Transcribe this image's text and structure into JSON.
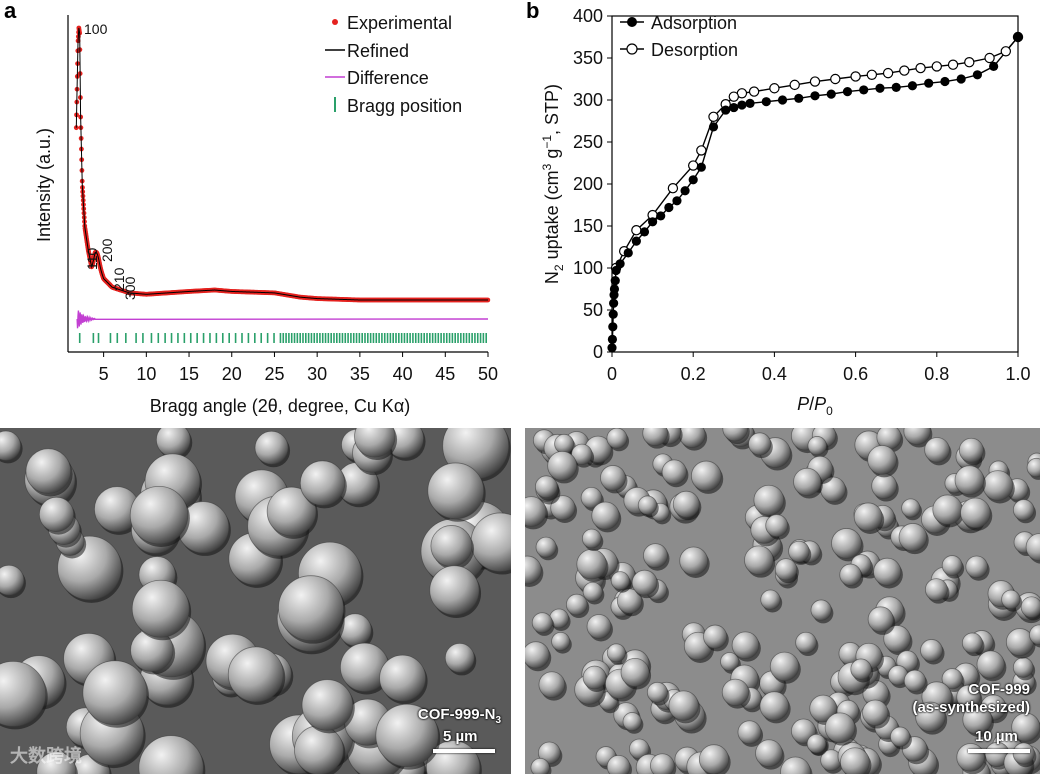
{
  "panel_a": {
    "letter": "a",
    "chart_data": {
      "type": "line",
      "xlabel": "Bragg angle (2θ, degree, Cu Kα)",
      "ylabel": "Intensity (a.u.)",
      "xlim": [
        1,
        50
      ],
      "xticks": [
        5,
        10,
        15,
        20,
        25,
        30,
        35,
        40,
        45,
        50
      ],
      "legend_position": "top-right",
      "legend": [
        "Experimental",
        "Refined",
        "Difference",
        "Bragg position"
      ],
      "peak_labels": [
        "100",
        "110",
        "200",
        "210",
        "300"
      ],
      "peak_positions": [
        2.2,
        3.8,
        4.4,
        5.8,
        6.6
      ],
      "series": [
        {
          "name": "Experimental",
          "x": [
            1.8,
            2.0,
            2.1,
            2.2,
            2.3,
            2.5,
            2.8,
            3.2,
            3.6,
            4.0,
            4.4,
            5.0,
            6.0,
            8.0,
            10,
            15,
            18,
            20,
            25,
            28,
            30,
            35,
            40,
            45,
            50
          ],
          "y": [
            0.65,
            0.95,
            1.0,
            0.98,
            0.7,
            0.45,
            0.3,
            0.22,
            0.16,
            0.19,
            0.17,
            0.12,
            0.09,
            0.07,
            0.065,
            0.075,
            0.08,
            0.075,
            0.07,
            0.055,
            0.05,
            0.045,
            0.045,
            0.045,
            0.045
          ]
        },
        {
          "name": "Difference",
          "value": -0.03
        }
      ]
    },
    "colors": {
      "experimental": "#e5221f",
      "refined": "#000000",
      "difference": "#c23fd2",
      "bragg": "#2aa06a"
    }
  },
  "panel_b": {
    "letter": "b",
    "chart_data": {
      "type": "line",
      "xlabel": "P/P0",
      "ylabel": "N2 uptake (cm3 g−1, STP)",
      "xlim": [
        0,
        1.0
      ],
      "ylim": [
        0,
        400
      ],
      "xticks": [
        "0",
        "0.2",
        "0.4",
        "0.6",
        "0.8",
        "1.0"
      ],
      "yticks": [
        "0",
        "50",
        "100",
        "150",
        "200",
        "250",
        "300",
        "350",
        "400"
      ],
      "legend_position": "top-left",
      "series": [
        {
          "name": "Adsorption",
          "x": [
            0.0,
            0.001,
            0.002,
            0.003,
            0.004,
            0.005,
            0.006,
            0.008,
            0.01,
            0.02,
            0.04,
            0.06,
            0.08,
            0.1,
            0.12,
            0.14,
            0.16,
            0.18,
            0.2,
            0.22,
            0.25,
            0.28,
            0.3,
            0.32,
            0.34,
            0.38,
            0.42,
            0.46,
            0.5,
            0.54,
            0.58,
            0.62,
            0.66,
            0.7,
            0.74,
            0.78,
            0.82,
            0.86,
            0.9,
            0.94,
            1.0
          ],
          "y": [
            5,
            15,
            30,
            45,
            58,
            68,
            75,
            85,
            97,
            105,
            118,
            132,
            143,
            155,
            162,
            172,
            180,
            192,
            205,
            220,
            268,
            288,
            291,
            294,
            296,
            298,
            300,
            302,
            305,
            307,
            310,
            312,
            314,
            315,
            317,
            320,
            322,
            325,
            330,
            340,
            375
          ]
        },
        {
          "name": "Desorption",
          "x": [
            1.0,
            0.97,
            0.93,
            0.88,
            0.84,
            0.8,
            0.76,
            0.72,
            0.68,
            0.64,
            0.6,
            0.55,
            0.5,
            0.45,
            0.4,
            0.35,
            0.32,
            0.3,
            0.28,
            0.25,
            0.22,
            0.2,
            0.15,
            0.1,
            0.06,
            0.03,
            0.01
          ],
          "y": [
            375,
            358,
            350,
            345,
            342,
            340,
            338,
            335,
            332,
            330,
            328,
            325,
            322,
            318,
            314,
            310,
            308,
            304,
            295,
            280,
            240,
            222,
            195,
            163,
            145,
            120,
            100
          ]
        }
      ]
    }
  },
  "sem_left": {
    "sample": "COF-999-N3",
    "sample_main": "COF-999-N",
    "sample_sub": "3",
    "scale": "5 µm"
  },
  "sem_right": {
    "sample_line1": "COF-999",
    "sample_line2": "(as-synthesized)",
    "scale": "10 µm"
  },
  "watermark": "大数跨境"
}
